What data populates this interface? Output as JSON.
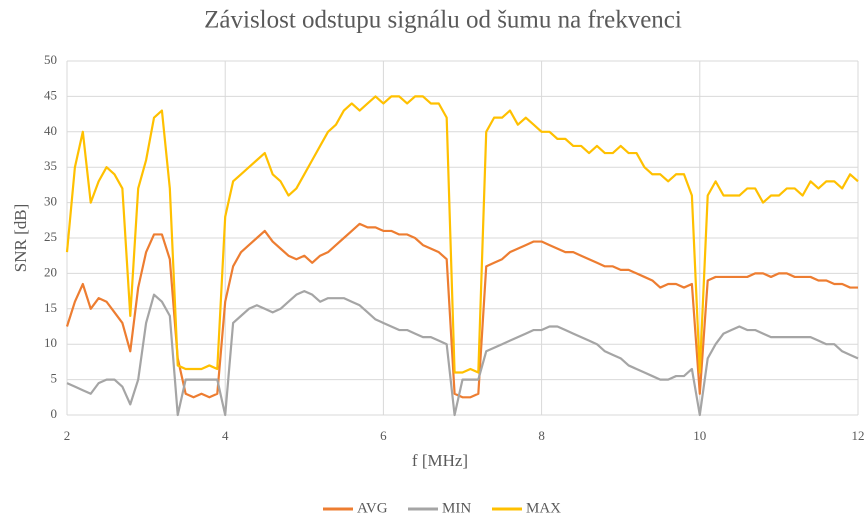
{
  "chart_data": {
    "type": "line",
    "title": "Závislost odstupu signálu od šumu na frekvenci",
    "xlabel": "f [MHz]",
    "ylabel": "SNR [dB]",
    "x": [
      2,
      2.1,
      2.2,
      2.3,
      2.4,
      2.5,
      2.6,
      2.7,
      2.8,
      2.9,
      3,
      3.1,
      3.2,
      3.3,
      3.4,
      3.5,
      3.6,
      3.7,
      3.8,
      3.9,
      4,
      4.1,
      4.2,
      4.3,
      4.4,
      4.5,
      4.6,
      4.7,
      4.8,
      4.9,
      5,
      5.1,
      5.2,
      5.3,
      5.4,
      5.5,
      5.6,
      5.7,
      5.8,
      5.9,
      6,
      6.1,
      6.2,
      6.3,
      6.4,
      6.5,
      6.6,
      6.7,
      6.8,
      6.9,
      7,
      7.1,
      7.2,
      7.3,
      7.4,
      7.5,
      7.6,
      7.7,
      7.8,
      7.9,
      8,
      8.1,
      8.2,
      8.3,
      8.4,
      8.5,
      8.6,
      8.7,
      8.8,
      8.9,
      9,
      9.1,
      9.2,
      9.3,
      9.4,
      9.5,
      9.6,
      9.7,
      9.8,
      9.9,
      10,
      10.1,
      10.2,
      10.3,
      10.4,
      10.5,
      10.6,
      10.7,
      10.8,
      10.9,
      11,
      11.1,
      11.2,
      11.3,
      11.4,
      11.5,
      11.6,
      11.7,
      11.8,
      11.9,
      12
    ],
    "series": [
      {
        "name": "AVG",
        "color": "#ed7d31",
        "values": [
          12.5,
          16,
          18.5,
          15,
          16.5,
          16,
          14.5,
          13,
          9,
          18,
          23,
          25.5,
          25.5,
          22,
          8,
          3,
          2.5,
          3,
          2.5,
          3,
          16,
          21,
          23,
          24,
          25,
          26,
          24.5,
          23.5,
          22.5,
          22,
          22.5,
          21.5,
          22.5,
          23,
          24,
          25,
          26,
          27,
          26.5,
          26.5,
          26,
          26,
          25.5,
          25.5,
          25,
          24,
          23.5,
          23,
          22,
          3,
          2.5,
          2.5,
          3,
          21,
          21.5,
          22,
          23,
          23.5,
          24,
          24.5,
          24.5,
          24,
          23.5,
          23,
          23,
          22.5,
          22,
          21.5,
          21,
          21,
          20.5,
          20.5,
          20,
          19.5,
          19,
          18,
          18.5,
          18.5,
          18,
          18.5,
          3,
          19,
          19.5,
          19.5,
          19.5,
          19.5,
          19.5,
          20,
          20,
          19.5,
          20,
          20,
          19.5,
          19.5,
          19.5,
          19,
          19,
          18.5,
          18.5,
          18,
          18
        ]
      },
      {
        "name": "MIN",
        "color": "#a5a5a5",
        "values": [
          4.5,
          4,
          3.5,
          3,
          4.5,
          5,
          5,
          4,
          1.5,
          5,
          13,
          17,
          16,
          14,
          0,
          5,
          5,
          5,
          5,
          5,
          0,
          13,
          14,
          15,
          15.5,
          15,
          14.5,
          15,
          16,
          17,
          17.5,
          17,
          16,
          16.5,
          16.5,
          16.5,
          16,
          15.5,
          14.5,
          13.5,
          13,
          12.5,
          12,
          12,
          11.5,
          11,
          11,
          10.5,
          10,
          0,
          5,
          5,
          5,
          9,
          9.5,
          10,
          10.5,
          11,
          11.5,
          12,
          12,
          12.5,
          12.5,
          12,
          11.5,
          11,
          10.5,
          10,
          9,
          8.5,
          8,
          7,
          6.5,
          6,
          5.5,
          5,
          5,
          5.5,
          5.5,
          6.5,
          0,
          8,
          10,
          11.5,
          12,
          12.5,
          12,
          12,
          11.5,
          11,
          11,
          11,
          11,
          11,
          11,
          10.5,
          10,
          10,
          9,
          8.5,
          8
        ]
      },
      {
        "name": "MAX",
        "color": "#ffc000",
        "values": [
          23,
          35,
          40,
          30,
          33,
          35,
          34,
          32,
          14,
          32,
          36,
          42,
          43,
          32,
          7,
          6.5,
          6.5,
          6.5,
          7,
          6.5,
          28,
          33,
          34,
          35,
          36,
          37,
          34,
          33,
          31,
          32,
          34,
          36,
          38,
          40,
          41,
          43,
          44,
          43,
          44,
          45,
          44,
          45,
          45,
          44,
          45,
          45,
          44,
          44,
          42,
          6,
          6,
          6.5,
          6,
          40,
          42,
          42,
          43,
          41,
          42,
          41,
          40,
          40,
          39,
          39,
          38,
          38,
          37,
          38,
          37,
          37,
          38,
          37,
          37,
          35,
          34,
          34,
          33,
          34,
          34,
          31,
          6,
          31,
          33,
          31,
          31,
          31,
          32,
          32,
          30,
          31,
          31,
          32,
          32,
          31,
          33,
          32,
          33,
          33,
          32,
          34,
          33
        ]
      }
    ],
    "xlim": [
      2,
      12
    ],
    "xticks": [
      2,
      4,
      6,
      8,
      10,
      12
    ],
    "ylim": [
      0,
      50
    ],
    "yticks": [
      0,
      5,
      10,
      15,
      20,
      25,
      30,
      35,
      40,
      45,
      50
    ],
    "grid": true,
    "legend": "bottom"
  }
}
